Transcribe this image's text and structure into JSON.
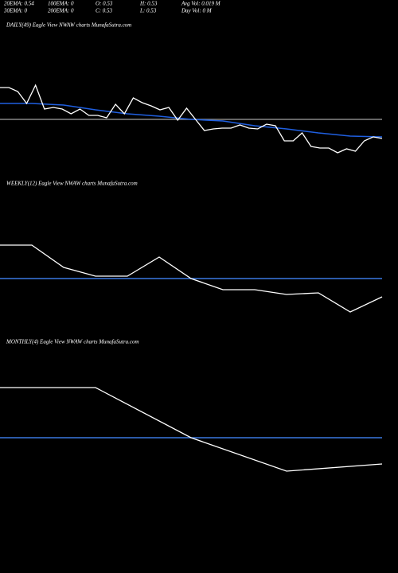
{
  "header": {
    "rows": [
      [
        "20EMA: 0.54",
        "100EMA: 0",
        "O: 0.53",
        "H: 0.53",
        "Avg Vol: 0.019 M"
      ],
      [
        "30EMA: 0",
        "200EMA: 0",
        "C: 0.53",
        "L: 0.53",
        "Day Vol: 0  M"
      ]
    ]
  },
  "chart_data": [
    {
      "type": "line",
      "title": "DAILY(49) Eagle  View  NWAW charts MunafaSutra.com",
      "ylim": [
        0,
        160
      ],
      "series": [
        {
          "color": "#888888",
          "values": [
            70,
            70
          ]
        },
        {
          "color": "#1f5fe0",
          "values": [
            90,
            90,
            88,
            82,
            77,
            74,
            70,
            68,
            62,
            58,
            53,
            49,
            48
          ]
        },
        {
          "color": "#ffffff",
          "values": [
            110,
            110,
            105,
            90,
            113,
            83,
            85,
            83,
            77,
            83,
            75,
            75,
            72,
            89,
            77,
            97,
            91,
            87,
            82,
            85,
            69,
            84,
            70,
            56,
            58,
            59,
            59,
            63,
            59,
            58,
            64,
            62,
            43,
            43,
            53,
            36,
            34,
            34,
            28,
            33,
            30,
            43,
            48,
            46
          ]
        }
      ]
    },
    {
      "type": "line",
      "title": "WEEKLY(12) Eagle  View  NWAW charts MunafaSutra.com",
      "ylim": [
        0,
        170
      ],
      "series": [
        {
          "color": "#3a78e0",
          "values": [
            70,
            70
          ]
        },
        {
          "color": "#ffffff",
          "values": [
            112,
            112,
            84,
            73,
            73,
            97,
            70,
            56,
            56,
            50,
            52,
            28,
            47
          ]
        }
      ]
    },
    {
      "type": "line",
      "title": "MONTHLY(4) Eagle  View  NWAW charts MunafaSutra.com",
      "ylim": [
        0,
        170
      ],
      "series": [
        {
          "color": "#3a78e0",
          "values": [
            70,
            70
          ]
        },
        {
          "color": "#ffffff",
          "values": [
            133,
            133,
            70,
            28,
            37
          ]
        }
      ]
    }
  ]
}
